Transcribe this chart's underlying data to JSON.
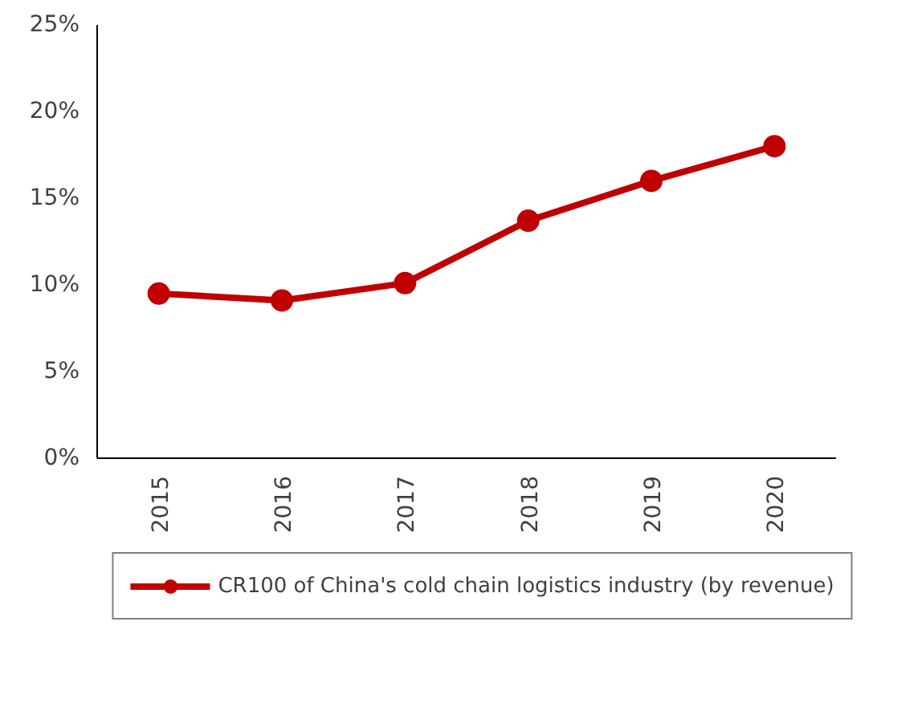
{
  "chart_data": {
    "type": "line",
    "categories": [
      "2015",
      "2016",
      "2017",
      "2018",
      "2019",
      "2020"
    ],
    "series": [
      {
        "name": "CR100 of China's cold chain logistics industry (by revenue)",
        "color": "#c00000",
        "values": [
          9.5,
          9.1,
          10.1,
          13.7,
          16.0,
          18.0
        ]
      }
    ],
    "ylim": [
      0,
      25
    ],
    "yticks": [
      {
        "value": 0,
        "label": "0%"
      },
      {
        "value": 5,
        "label": "5%"
      },
      {
        "value": 10,
        "label": "10%"
      },
      {
        "value": 15,
        "label": "15%"
      },
      {
        "value": 20,
        "label": "20%"
      },
      {
        "value": 25,
        "label": "25%"
      }
    ],
    "grid": false,
    "legend": "bottom",
    "marker": "circle",
    "line_style": "solid"
  }
}
